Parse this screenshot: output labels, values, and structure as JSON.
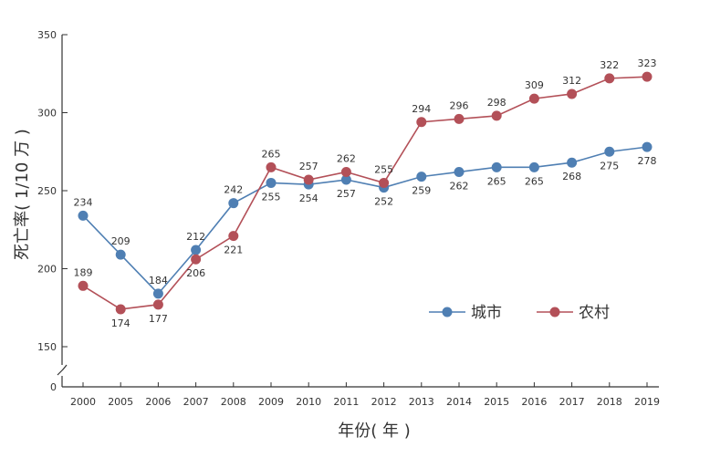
{
  "chart_data": {
    "type": "line",
    "xlabel": "年份( 年 )",
    "ylabel": "死亡率( 1/10 万 )",
    "categories": [
      "2000",
      "2005",
      "2006",
      "2007",
      "2008",
      "2009",
      "2010",
      "2011",
      "2012",
      "2013",
      "2014",
      "2015",
      "2016",
      "2017",
      "2018",
      "2019"
    ],
    "series": [
      {
        "name": "城市",
        "color": "#4f7fb3",
        "values": [
          234,
          209,
          184,
          212,
          242,
          255,
          254,
          257,
          252,
          259,
          262,
          265,
          265,
          268,
          275,
          278
        ]
      },
      {
        "name": "农村",
        "color": "#b35058",
        "values": [
          189,
          174,
          177,
          206,
          221,
          265,
          257,
          262,
          255,
          294,
          296,
          298,
          309,
          312,
          322,
          323
        ]
      }
    ],
    "y_ticks": [
      "350",
      "300",
      "250",
      "200",
      "150"
    ],
    "y_break_tick": "0",
    "ylim": [
      150,
      350
    ],
    "axis_break": true,
    "grid": false,
    "legend_position": "right-middle"
  }
}
